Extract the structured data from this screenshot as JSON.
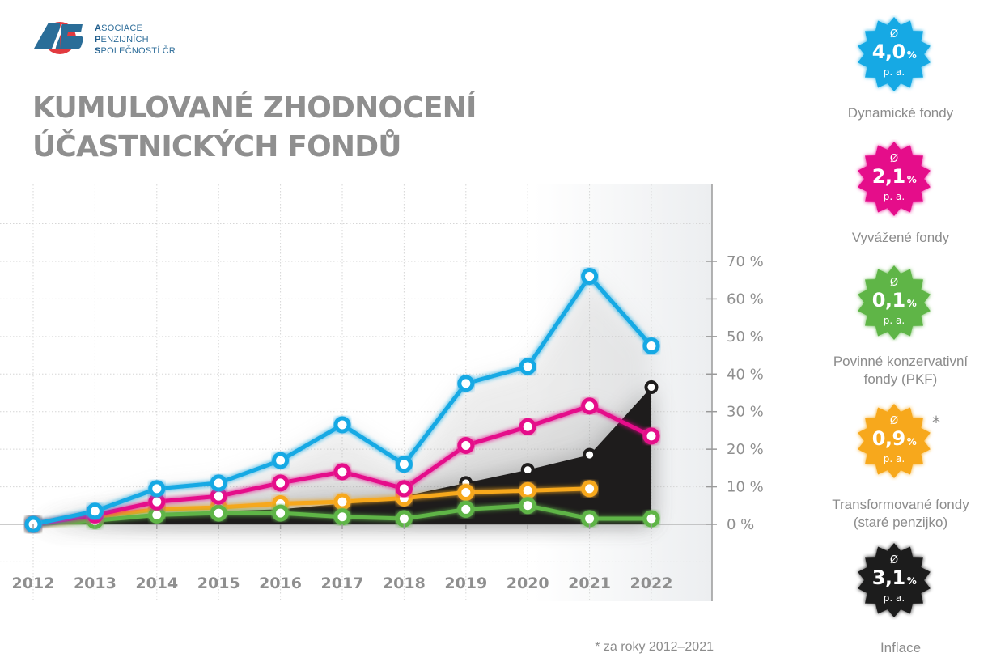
{
  "logo": {
    "lines": [
      {
        "initial": "A",
        "rest": "SOCIACE"
      },
      {
        "initial": "P",
        "rest": "ENZIJNÍCH"
      },
      {
        "initial": "S",
        "rest": "POLEČNOSTÍ ČR"
      }
    ]
  },
  "title": {
    "line1": "KUMULOVANÉ ZHODNOCENÍ",
    "line2": "ÚČASTNICKÝCH FONDŮ"
  },
  "footnote": "* za roky 2012–2021",
  "legend": [
    {
      "key": "dynamic",
      "avg_symbol": "Ø",
      "value": "4,0",
      "unit": "%",
      "period": "p. a.",
      "label_lines": [
        "Dynamické fondy"
      ],
      "color": "#12a9e4",
      "asterisk": ""
    },
    {
      "key": "balanced",
      "avg_symbol": "Ø",
      "value": "2,1",
      "unit": "%",
      "period": "p. a.",
      "label_lines": [
        "Vyvážené fondy"
      ],
      "color": "#e5078a",
      "asterisk": ""
    },
    {
      "key": "pkf",
      "avg_symbol": "Ø",
      "value": "0,1",
      "unit": "%",
      "period": "p. a.",
      "label_lines": [
        "Povinné konzervativní",
        "fondy (PKF)"
      ],
      "color": "#5fb546",
      "asterisk": ""
    },
    {
      "key": "transformed",
      "avg_symbol": "Ø",
      "value": "0,9",
      "unit": "%",
      "period": "p. a.",
      "label_lines": [
        "Transformované fondy",
        "(staré penzijko)"
      ],
      "color": "#f7a81b",
      "asterisk": "*"
    },
    {
      "key": "inflation",
      "avg_symbol": "Ø",
      "value": "3,1",
      "unit": "%",
      "period": "p. a.",
      "label_lines": [
        "Inflace"
      ],
      "color": "#1e1c1c",
      "asterisk": ""
    }
  ],
  "chart_data": {
    "type": "line",
    "title": "KUMULOVANÉ ZHODNOCENÍ ÚČASTNICKÝCH FONDŮ",
    "xlabel": "",
    "ylabel": "",
    "x": [
      "2012",
      "2013",
      "2014",
      "2015",
      "2016",
      "2017",
      "2018",
      "2019",
      "2020",
      "2021",
      "2022"
    ],
    "y_ticks": [
      "0 %",
      "10 %",
      "20 %",
      "30 %",
      "40 %",
      "50 %",
      "60 %",
      "70 %"
    ],
    "ylim": [
      -10,
      90
    ],
    "grid": true,
    "legend_position": "right",
    "series": [
      {
        "name": "Dynamické fondy",
        "color": "#12a9e4",
        "style": "line",
        "values": [
          0,
          3.5,
          9.5,
          11,
          17,
          26.5,
          16,
          37.5,
          42,
          66,
          47.5
        ]
      },
      {
        "name": "Vyvážené fondy",
        "color": "#e5078a",
        "style": "line",
        "values": [
          0,
          2.5,
          6,
          7.5,
          11,
          14,
          9.5,
          21,
          26,
          31.5,
          23.5
        ]
      },
      {
        "name": "Transformované fondy (staré penzijko)",
        "color": "#f7a81b",
        "style": "line",
        "values": [
          0,
          2,
          4,
          4.5,
          5.5,
          6,
          7,
          8.5,
          9,
          9.5,
          null
        ]
      },
      {
        "name": "Povinné konzervativní fondy (PKF)",
        "color": "#5fb546",
        "style": "line",
        "values": [
          0,
          1,
          2.5,
          3,
          3,
          2,
          1.5,
          4,
          5,
          1.5,
          1.5
        ]
      },
      {
        "name": "Inflace",
        "color": "#1e1c1c",
        "style": "area",
        "values": [
          0,
          1.5,
          3,
          3.5,
          4,
          5.5,
          7.5,
          11,
          14.5,
          18.5,
          36.5
        ]
      }
    ],
    "annual_averages_pa": {
      "Dynamické fondy": "4,0 %",
      "Vyvážené fondy": "2,1 %",
      "Povinné konzervativní fondy (PKF)": "0,1 %",
      "Transformované fondy (staré penzijko)": "0,9 % *",
      "Inflace": "3,1 %"
    }
  }
}
